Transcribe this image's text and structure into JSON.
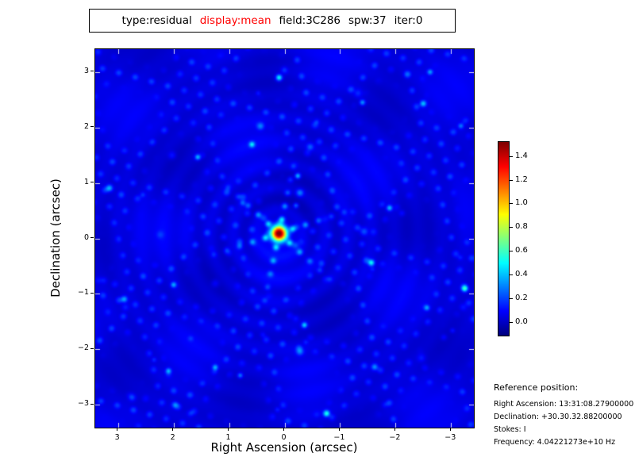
{
  "colors": {
    "background": "#ffffff",
    "text": "#000000",
    "frame": "#000000",
    "title_highlight": "#ff0000"
  },
  "title": {
    "parts": [
      {
        "text": "type:residual",
        "color": "#000000"
      },
      {
        "text": "display:mean",
        "color": "#ff0000"
      },
      {
        "text": "field:3C286",
        "color": "#000000"
      },
      {
        "text": "spw:37",
        "color": "#000000"
      },
      {
        "text": "iter:0",
        "color": "#000000"
      }
    ]
  },
  "chart_data": {
    "type": "heatmap",
    "title": "type:residual display:mean field:3C286 spw:37 iter:0",
    "xlabel": "Right Ascension (arcsec)",
    "ylabel": "Declination (arcsec)",
    "xlim": [
      3.41,
      -3.41
    ],
    "ylim": [
      -3.41,
      3.41
    ],
    "x_ticks": [
      3,
      2,
      1,
      0,
      -1,
      -2,
      -3
    ],
    "y_ticks": [
      3,
      2,
      1,
      0,
      -1,
      -2,
      -3
    ],
    "grid": false,
    "colormap": "jet",
    "colorbar": {
      "vmin": -0.107,
      "vmax": 1.53,
      "ticks": [
        1.4,
        1.2,
        1.0,
        0.8,
        0.6,
        0.4,
        0.2,
        0.0
      ]
    },
    "peak": {
      "ra_arcsec": 0.1,
      "dec_arcsec": 0.09,
      "value": 1.5
    },
    "background_level": 0.05
  },
  "reference": {
    "title": "Reference position:",
    "lines": [
      "Right Ascension: 13:31:08.27900000",
      "Declination: +30.30.32.88200000",
      "Stokes: I",
      "Frequency: 4.04221273e+10 Hz"
    ]
  }
}
